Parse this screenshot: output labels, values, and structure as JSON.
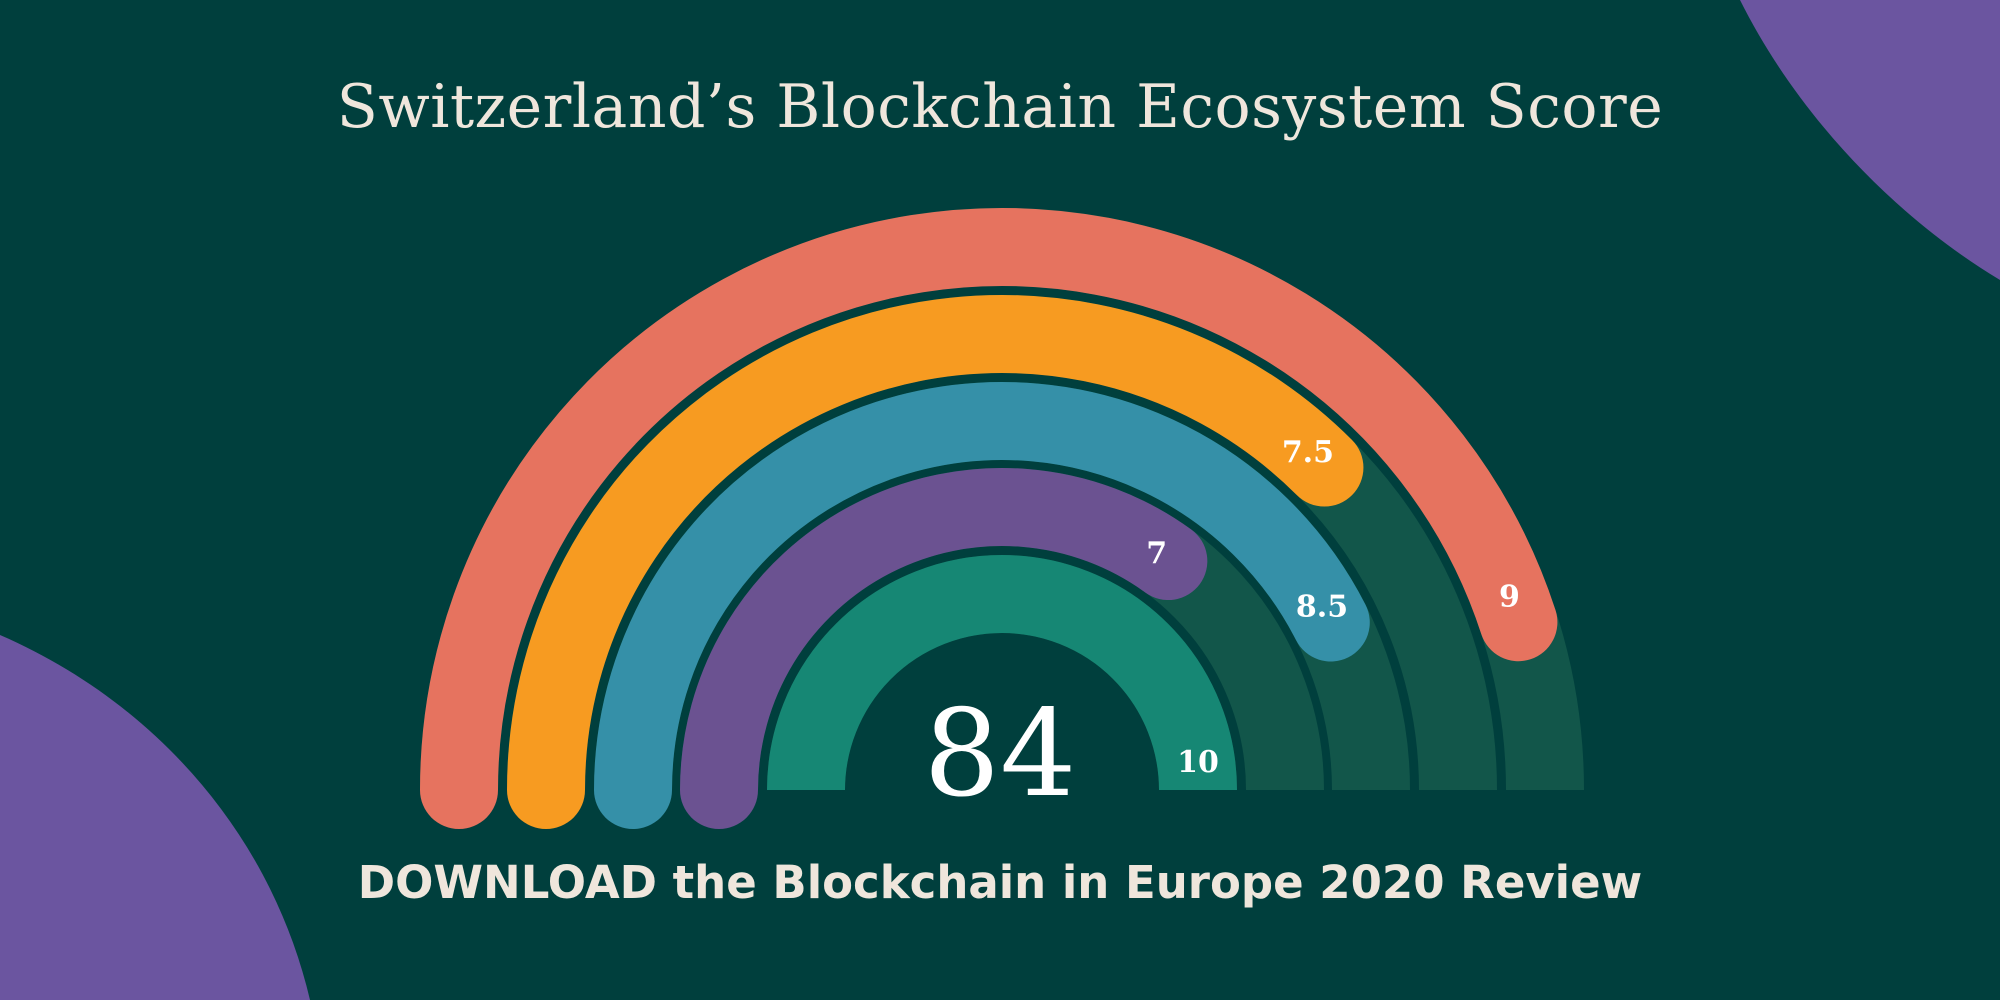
{
  "header": {
    "title": "Switzerland’s Blockchain Ecosystem Score"
  },
  "footer": {
    "cta": "DOWNLOAD the Blockchain in Europe 2020 Review"
  },
  "chart_data": {
    "type": "radial-bar",
    "max": 10,
    "total_score": "84",
    "series": [
      {
        "value": 9,
        "label": "9",
        "color": "#e6735f"
      },
      {
        "value": 7.5,
        "label": "7.5",
        "color": "#f79b21"
      },
      {
        "value": 8.5,
        "label": "8.5",
        "color": "#3590a8"
      },
      {
        "value": 7,
        "label": "7",
        "color": "#6b5291"
      },
      {
        "value": 10,
        "label": "10",
        "color": "#168774"
      }
    ],
    "track_color": "#12564a"
  },
  "colors": {
    "background": "#003f3d",
    "blob": "#6b55a0",
    "text": "#efe6dc"
  }
}
